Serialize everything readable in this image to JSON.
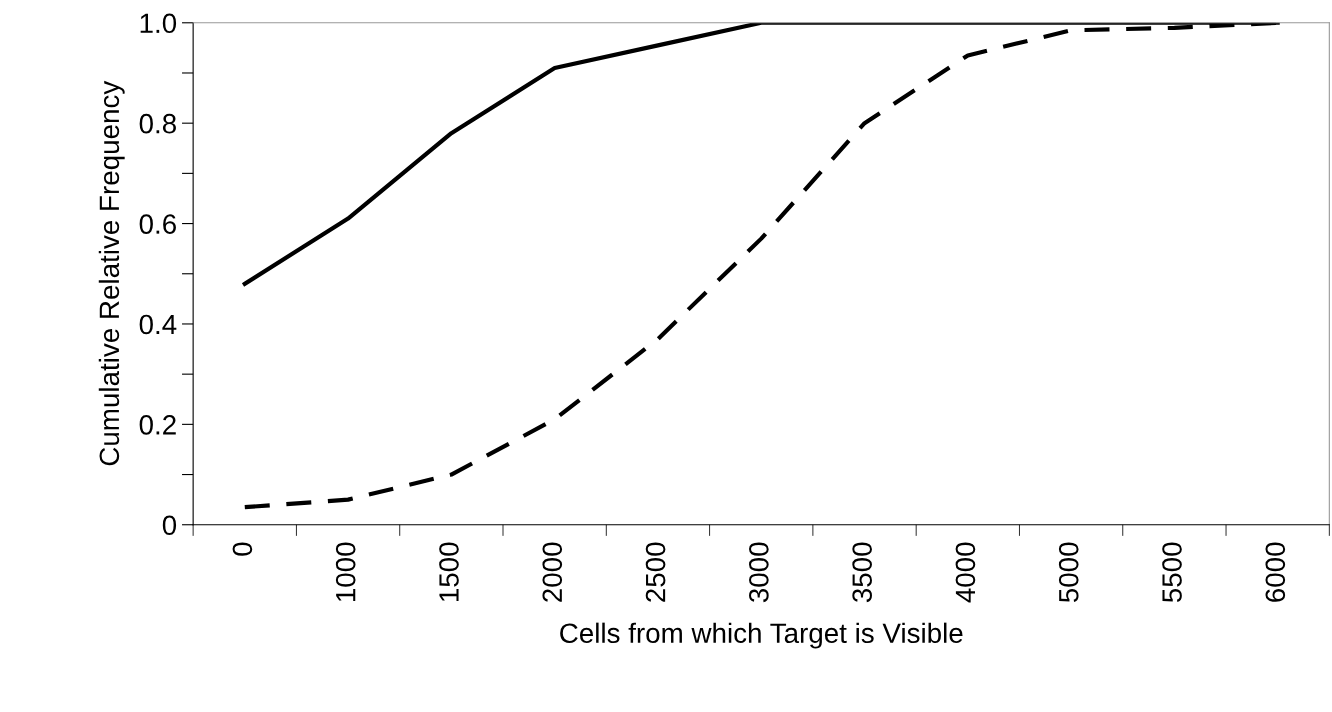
{
  "chart_data": {
    "type": "line",
    "xlabel": "Cells from which Target is Visible",
    "ylabel": "Cumulative Relative Frequency",
    "categories": [
      "0",
      "1000",
      "1500",
      "2000",
      "2500",
      "3000",
      "3500",
      "4000",
      "5000",
      "5500",
      "6000"
    ],
    "series": [
      {
        "color": "#000000",
        "line_style": "solid",
        "values": [
          0.48,
          0.61,
          0.78,
          0.91,
          0.955,
          1.0,
          1.0,
          1.0,
          1.0,
          1.0,
          1.0
        ]
      },
      {
        "color": "#000000",
        "line_style": "dashed",
        "values": [
          0.035,
          0.05,
          0.1,
          0.21,
          0.37,
          0.57,
          0.8,
          0.935,
          0.985,
          0.99,
          1.0
        ]
      }
    ],
    "ylim": [
      0,
      1.0
    ],
    "yticks": [
      0,
      {
        "value": 0.1,
        "label": null
      },
      0.2,
      {
        "value": 0.3,
        "label": null
      },
      0.4,
      {
        "value": 0.5,
        "label": null
      },
      0.6,
      {
        "value": 0.7,
        "label": null
      },
      0.8,
      {
        "value": 0.9,
        "label": null
      },
      {
        "value": 1.0,
        "label": "1.0"
      }
    ],
    "marker": "none"
  }
}
